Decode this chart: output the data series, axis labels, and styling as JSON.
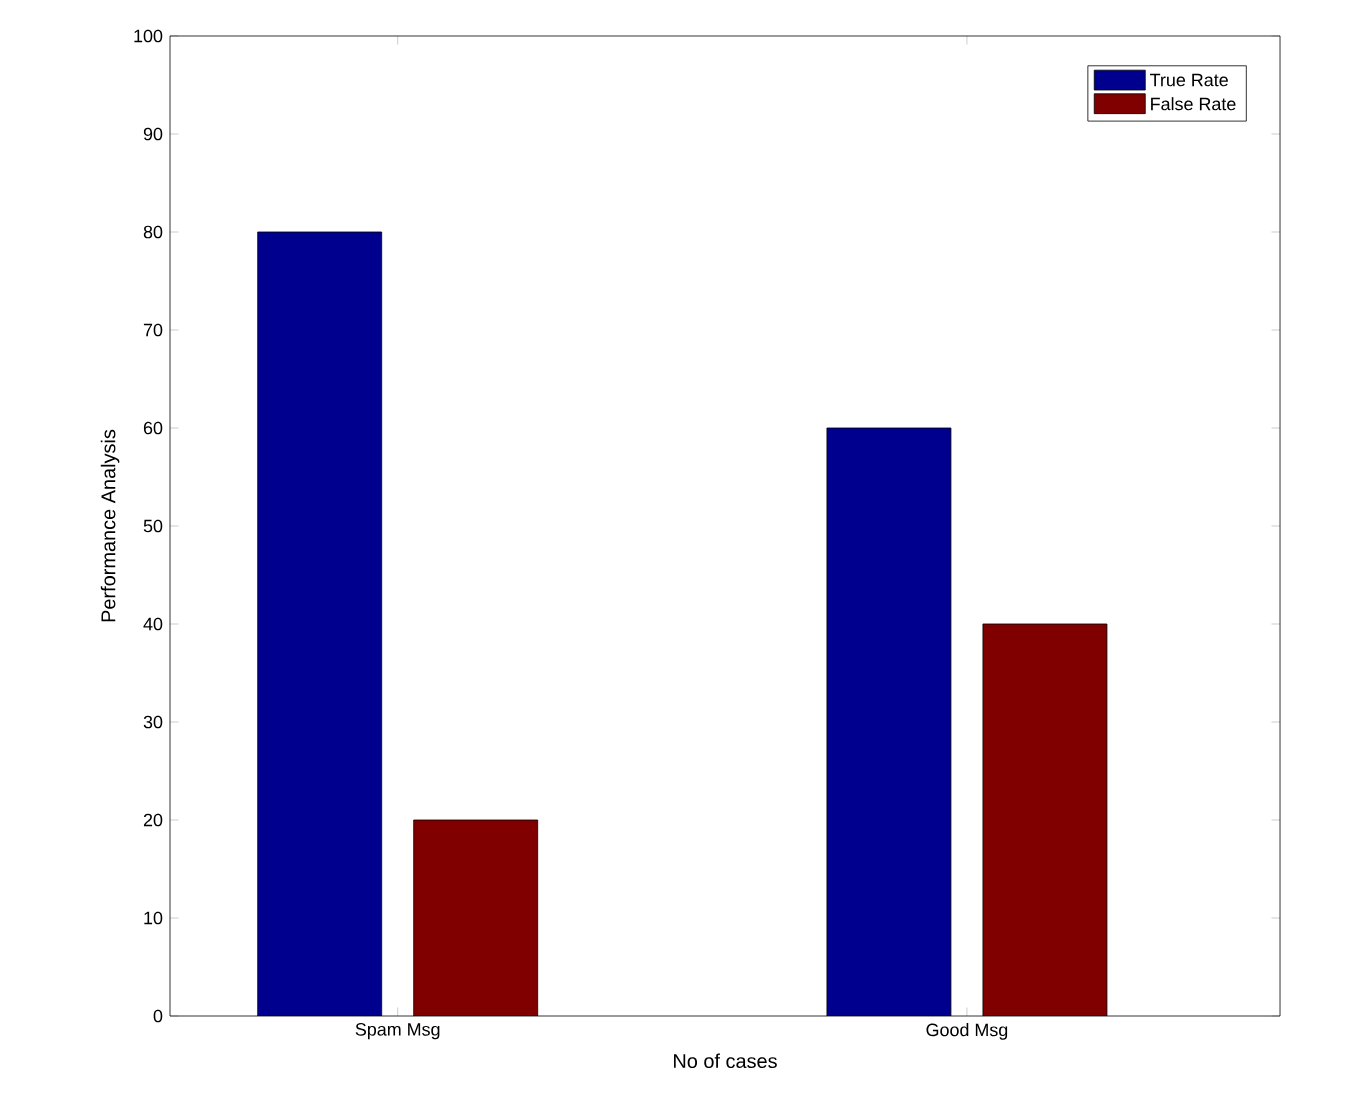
{
  "chart_data": {
    "type": "bar",
    "xlabel": "No of cases",
    "ylabel": "Performance Analysis",
    "categories": [
      "Spam Msg",
      "Good Msg"
    ],
    "series": [
      {
        "name": "True Rate",
        "color": "#00008f",
        "values": [
          80,
          60
        ]
      },
      {
        "name": "False Rate",
        "color": "#800000",
        "values": [
          20,
          40
        ]
      }
    ],
    "ylim": [
      0,
      100
    ],
    "yticks": [
      0,
      10,
      20,
      30,
      40,
      50,
      60,
      70,
      80,
      90,
      100
    ],
    "legend": "top right"
  }
}
